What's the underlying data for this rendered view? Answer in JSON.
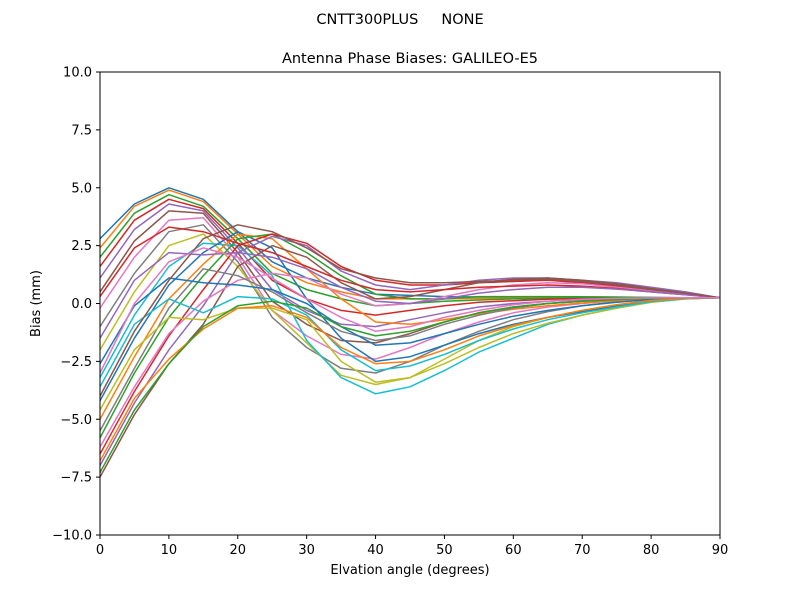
{
  "figure": {
    "suptitle": "CNTT300PLUS     NONE"
  },
  "chart_data": {
    "type": "line",
    "title": "Antenna Phase Biases: GALILEO-E5",
    "xlabel": "Elvation angle (degrees)",
    "ylabel": "Bias (mm)",
    "xlim": [
      0,
      90
    ],
    "ylim": [
      -10,
      10
    ],
    "xticks": [
      0,
      10,
      20,
      30,
      40,
      50,
      60,
      70,
      80,
      90
    ],
    "yticks": [
      -10.0,
      -7.5,
      -5.0,
      -2.5,
      0.0,
      2.5,
      5.0,
      7.5,
      10.0
    ],
    "xtick_labels": [
      "0",
      "10",
      "20",
      "30",
      "40",
      "50",
      "60",
      "70",
      "80",
      "90"
    ],
    "ytick_labels": [
      "−10.0",
      "−7.5",
      "−5.0",
      "−2.5",
      "0.0",
      "2.5",
      "5.0",
      "7.5",
      "10.0"
    ],
    "grid": false,
    "legend": "none",
    "x": [
      0,
      5,
      10,
      15,
      20,
      25,
      30,
      35,
      40,
      45,
      50,
      55,
      60,
      65,
      70,
      75,
      80,
      85,
      90
    ],
    "color_cycle": [
      "#1f77b4",
      "#ff7f0e",
      "#2ca02c",
      "#d62728",
      "#9467bd",
      "#8c564b",
      "#e377c2",
      "#7f7f7f",
      "#bcbd22",
      "#17becf"
    ],
    "series": [
      {
        "values": [
          2.8,
          4.3,
          5.0,
          4.5,
          3.1,
          1.8,
          1.1,
          0.7,
          0.4,
          0.35,
          0.3,
          0.28,
          0.27,
          0.27,
          0.27,
          0.27,
          0.26,
          0.25,
          0.25
        ]
      },
      {
        "values": [
          2.4,
          4.2,
          4.9,
          4.4,
          3.0,
          1.6,
          0.9,
          0.5,
          0.2,
          0.2,
          0.2,
          0.22,
          0.23,
          0.24,
          0.25,
          0.25,
          0.25,
          0.25,
          0.25
        ]
      },
      {
        "values": [
          2.0,
          3.9,
          4.7,
          4.2,
          2.8,
          1.3,
          0.6,
          0.2,
          -0.1,
          0.0,
          0.1,
          0.15,
          0.2,
          0.22,
          0.23,
          0.24,
          0.25,
          0.25,
          0.25
        ]
      },
      {
        "values": [
          1.6,
          3.6,
          4.5,
          4.1,
          2.6,
          1.0,
          0.2,
          -0.3,
          -0.5,
          -0.3,
          -0.1,
          0.05,
          0.12,
          0.18,
          0.21,
          0.23,
          0.24,
          0.25,
          0.25
        ]
      },
      {
        "values": [
          1.1,
          3.2,
          4.3,
          4.0,
          2.4,
          0.6,
          -0.3,
          -0.9,
          -1.0,
          -0.7,
          -0.4,
          -0.15,
          0.0,
          0.1,
          0.17,
          0.21,
          0.23,
          0.25,
          0.25
        ]
      },
      {
        "values": [
          0.5,
          2.7,
          4.0,
          3.9,
          2.2,
          0.1,
          -0.9,
          -1.6,
          -1.7,
          -1.3,
          -0.8,
          -0.4,
          -0.15,
          0.0,
          0.1,
          0.17,
          0.22,
          0.24,
          0.25
        ]
      },
      {
        "values": [
          -0.2,
          2.0,
          3.6,
          3.7,
          2.0,
          -0.3,
          -1.4,
          -2.2,
          -2.4,
          -1.9,
          -1.3,
          -0.8,
          -0.4,
          -0.15,
          0.0,
          0.12,
          0.2,
          0.24,
          0.25
        ]
      },
      {
        "values": [
          -1.0,
          1.3,
          3.1,
          3.4,
          1.8,
          -0.6,
          -1.9,
          -2.8,
          -3.0,
          -2.5,
          -1.8,
          -1.2,
          -0.7,
          -0.35,
          -0.1,
          0.07,
          0.18,
          0.23,
          0.25
        ]
      },
      {
        "values": [
          -2.0,
          0.5,
          2.5,
          3.0,
          1.6,
          -0.3,
          -1.7,
          -3.1,
          -3.5,
          -3.2,
          -2.4,
          -1.6,
          -1.0,
          -0.6,
          -0.3,
          -0.05,
          0.13,
          0.22,
          0.25
        ]
      },
      {
        "values": [
          -3.2,
          -0.5,
          1.6,
          2.6,
          2.5,
          1.2,
          -1.6,
          -3.2,
          -3.9,
          -3.6,
          -2.9,
          -2.1,
          -1.5,
          -0.9,
          -0.5,
          -0.2,
          0.05,
          0.2,
          0.25
        ]
      },
      {
        "values": [
          -4.2,
          -1.5,
          0.8,
          2.2,
          3.1,
          2.4,
          0.2,
          -1.5,
          -2.5,
          -2.3,
          -1.8,
          -1.3,
          -0.9,
          -0.6,
          -0.35,
          -0.1,
          0.1,
          0.21,
          0.25
        ]
      },
      {
        "values": [
          -5.0,
          -2.3,
          0.2,
          1.7,
          3.0,
          2.8,
          1.5,
          0.2,
          -0.8,
          -0.9,
          -0.7,
          -0.45,
          -0.25,
          -0.1,
          0.02,
          0.13,
          0.2,
          0.23,
          0.25
        ]
      },
      {
        "values": [
          -5.8,
          -3.0,
          -0.6,
          1.2,
          2.8,
          3.0,
          2.2,
          1.2,
          0.4,
          0.2,
          0.2,
          0.3,
          0.3,
          0.3,
          0.29,
          0.28,
          0.26,
          0.25,
          0.25
        ]
      },
      {
        "values": [
          -6.5,
          -3.8,
          -1.4,
          0.6,
          2.5,
          3.0,
          2.6,
          1.6,
          1.0,
          0.8,
          0.8,
          0.9,
          0.95,
          1.0,
          0.9,
          0.75,
          0.55,
          0.4,
          0.25
        ]
      },
      {
        "values": [
          -7.0,
          -4.3,
          -2.0,
          -0.1,
          2.2,
          2.9,
          2.5,
          1.4,
          0.8,
          0.6,
          0.8,
          1.0,
          1.1,
          1.1,
          1.0,
          0.9,
          0.7,
          0.5,
          0.25
        ]
      },
      {
        "values": [
          -7.5,
          -4.8,
          -2.6,
          -0.9,
          1.6,
          2.5,
          2.0,
          0.9,
          0.2,
          0.3,
          0.6,
          0.9,
          1.05,
          1.1,
          1.0,
          0.85,
          0.65,
          0.45,
          0.25
        ]
      },
      {
        "values": [
          -6.2,
          -3.6,
          -1.3,
          0.1,
          1.0,
          1.3,
          1.1,
          0.4,
          -0.1,
          0.0,
          0.3,
          0.6,
          0.8,
          0.9,
          0.85,
          0.7,
          0.55,
          0.4,
          0.25
        ]
      },
      {
        "values": [
          -5.5,
          -2.8,
          -0.2,
          1.5,
          1.2,
          0.5,
          -0.4,
          -1.2,
          -1.6,
          -1.4,
          -0.9,
          -0.5,
          -0.2,
          0.0,
          0.12,
          0.2,
          0.23,
          0.24,
          0.25
        ]
      },
      {
        "values": [
          -4.6,
          -2.0,
          -0.6,
          -0.7,
          -0.2,
          -0.2,
          -0.7,
          -2.5,
          -3.4,
          -3.2,
          -2.6,
          -1.9,
          -1.3,
          -0.85,
          -0.5,
          -0.2,
          0.05,
          0.2,
          0.25
        ]
      },
      {
        "values": [
          -3.6,
          -0.9,
          0.2,
          -0.4,
          0.3,
          0.2,
          -0.5,
          -2.0,
          -2.9,
          -2.7,
          -2.2,
          -1.6,
          -1.1,
          -0.7,
          -0.4,
          -0.15,
          0.08,
          0.21,
          0.25
        ]
      },
      {
        "values": [
          -2.6,
          -0.1,
          1.1,
          0.9,
          0.8,
          0.6,
          0.0,
          -1.0,
          -1.8,
          -1.7,
          -1.3,
          -0.9,
          -0.55,
          -0.3,
          -0.1,
          0.05,
          0.17,
          0.23,
          0.25
        ]
      },
      {
        "values": [
          -6.8,
          -4.1,
          -2.4,
          -1.1,
          -0.2,
          -0.1,
          -0.6,
          -1.9,
          -2.6,
          -2.5,
          -2.0,
          -1.4,
          -0.95,
          -0.6,
          -0.3,
          -0.05,
          0.13,
          0.22,
          0.25
        ]
      },
      {
        "values": [
          -7.3,
          -4.6,
          -2.6,
          -1.0,
          -0.1,
          0.1,
          -0.2,
          -1.0,
          -1.4,
          -1.2,
          -0.8,
          -0.4,
          -0.15,
          0.0,
          0.1,
          0.17,
          0.22,
          0.24,
          0.25
        ]
      },
      {
        "values": [
          0.3,
          2.4,
          3.3,
          3.1,
          2.6,
          2.2,
          1.6,
          1.0,
          0.6,
          0.5,
          0.6,
          0.7,
          0.75,
          0.8,
          0.75,
          0.65,
          0.5,
          0.38,
          0.25
        ]
      },
      {
        "values": [
          -1.5,
          1.0,
          2.2,
          2.1,
          2.2,
          2.0,
          1.5,
          0.7,
          0.1,
          0.0,
          0.2,
          0.45,
          0.6,
          0.7,
          0.7,
          0.62,
          0.5,
          0.38,
          0.25
        ]
      },
      {
        "values": [
          -4.0,
          -1.2,
          1.0,
          2.8,
          3.4,
          3.1,
          2.4,
          1.5,
          1.1,
          0.9,
          0.9,
          0.95,
          1.0,
          1.05,
          0.95,
          0.8,
          0.6,
          0.45,
          0.25
        ]
      },
      {
        "values": [
          -3.0,
          0.0,
          1.8,
          2.4,
          2.0,
          1.1,
          0.2,
          -0.6,
          -1.2,
          -1.0,
          -0.6,
          -0.3,
          -0.05,
          0.1,
          0.18,
          0.22,
          0.24,
          0.25,
          0.25
        ]
      }
    ]
  }
}
